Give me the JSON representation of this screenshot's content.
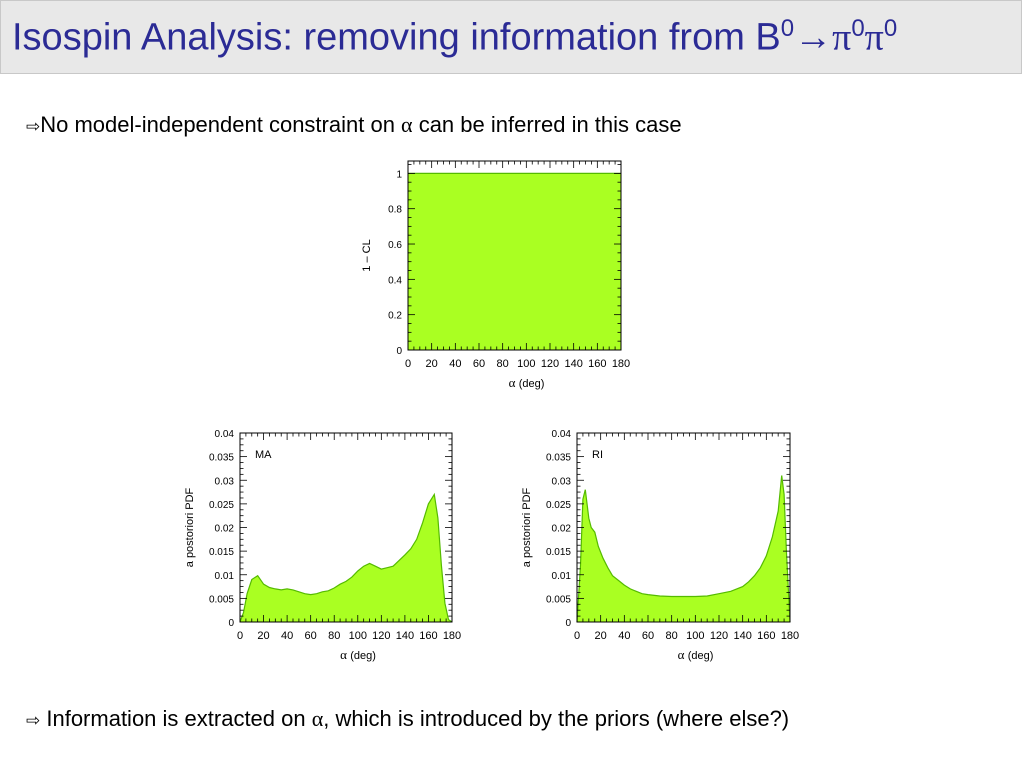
{
  "slide": {
    "title": {
      "prefix": "Isospin Analysis: removing information from B",
      "sup1": "0",
      "arrow": "→",
      "pi1": "π",
      "sup2": "0",
      "pi2": "π",
      "sup3": "0"
    },
    "bullets": [
      {
        "icon": "hollow-arrow-icon",
        "before": "No model-independent constraint on ",
        "greek": "α",
        "after": " can be inferred in this case"
      },
      {
        "icon": "hollow-arrow-icon",
        "before": " Information is extracted on ",
        "greek": "α",
        "after": ", which is introduced by the priors (where else?)"
      }
    ],
    "colors": {
      "title": "#2b2b95",
      "fill": "#aaff22",
      "stroke": "#55bb00",
      "header_bg": "#e8e8e8"
    }
  },
  "chart_data": [
    {
      "id": "cl",
      "type": "area",
      "xlabel_greek": "α",
      "xlabel": "(deg)",
      "ylabel": "1 – CL",
      "xlim": [
        0,
        180
      ],
      "ylim": [
        0,
        1.07
      ],
      "xticks": [
        0,
        20,
        40,
        60,
        80,
        100,
        120,
        140,
        160,
        180
      ],
      "yticks": [
        0,
        0.2,
        0.4,
        0.6,
        0.8,
        1
      ],
      "ytick_labels": [
        "0",
        "0.2",
        "0.4",
        "0.6",
        "0.8",
        "1"
      ],
      "x": [
        0,
        180
      ],
      "y": [
        1,
        1
      ]
    },
    {
      "id": "ma",
      "type": "area",
      "annotation": "MA",
      "xlabel_greek": "α",
      "xlabel": "(deg)",
      "ylabel": "a postoriori PDF",
      "xlim": [
        0,
        180
      ],
      "ylim": [
        0,
        0.04
      ],
      "xticks": [
        0,
        20,
        40,
        60,
        80,
        100,
        120,
        140,
        160,
        180
      ],
      "yticks": [
        0,
        0.005,
        0.01,
        0.015,
        0.02,
        0.025,
        0.03,
        0.035,
        0.04
      ],
      "ytick_labels": [
        "0",
        "0.005",
        "0.01",
        "0.015",
        "0.02",
        "0.025",
        "0.03",
        "0.035",
        "0.04"
      ],
      "x": [
        0,
        3,
        6,
        10,
        15,
        20,
        25,
        30,
        35,
        40,
        45,
        50,
        55,
        60,
        65,
        70,
        75,
        80,
        85,
        90,
        95,
        100,
        105,
        110,
        115,
        120,
        125,
        130,
        135,
        140,
        145,
        150,
        155,
        160,
        165,
        168,
        171,
        174,
        177,
        180
      ],
      "y": [
        0,
        0.002,
        0.006,
        0.009,
        0.0098,
        0.008,
        0.0073,
        0.007,
        0.0068,
        0.007,
        0.0068,
        0.0064,
        0.006,
        0.0058,
        0.006,
        0.0064,
        0.0066,
        0.0072,
        0.008,
        0.0086,
        0.0095,
        0.0108,
        0.0118,
        0.0124,
        0.0118,
        0.0112,
        0.0115,
        0.0118,
        0.013,
        0.0142,
        0.0155,
        0.0175,
        0.021,
        0.025,
        0.027,
        0.022,
        0.012,
        0.004,
        0.0005,
        0
      ]
    },
    {
      "id": "ri",
      "type": "area",
      "annotation": "RI",
      "xlabel_greek": "α",
      "xlabel": "(deg)",
      "ylabel": "a postoriori PDF",
      "xlim": [
        0,
        180
      ],
      "ylim": [
        0,
        0.04
      ],
      "xticks": [
        0,
        20,
        40,
        60,
        80,
        100,
        120,
        140,
        160,
        180
      ],
      "yticks": [
        0,
        0.005,
        0.01,
        0.015,
        0.02,
        0.025,
        0.03,
        0.035,
        0.04
      ],
      "ytick_labels": [
        "0",
        "0.005",
        "0.01",
        "0.015",
        "0.02",
        "0.025",
        "0.03",
        "0.035",
        "0.04"
      ],
      "x": [
        0,
        3,
        5,
        7,
        10,
        12,
        15,
        18,
        22,
        26,
        30,
        35,
        40,
        45,
        50,
        55,
        60,
        70,
        80,
        90,
        100,
        110,
        120,
        130,
        140,
        145,
        150,
        155,
        160,
        165,
        170,
        173,
        175,
        177,
        180
      ],
      "y": [
        0,
        0.012,
        0.026,
        0.028,
        0.022,
        0.02,
        0.019,
        0.016,
        0.0135,
        0.0115,
        0.0098,
        0.0088,
        0.0078,
        0.007,
        0.0065,
        0.006,
        0.0058,
        0.0055,
        0.0054,
        0.0054,
        0.0054,
        0.0055,
        0.006,
        0.0065,
        0.0075,
        0.0085,
        0.0098,
        0.0115,
        0.014,
        0.018,
        0.0235,
        0.031,
        0.027,
        0.015,
        0
      ]
    }
  ]
}
